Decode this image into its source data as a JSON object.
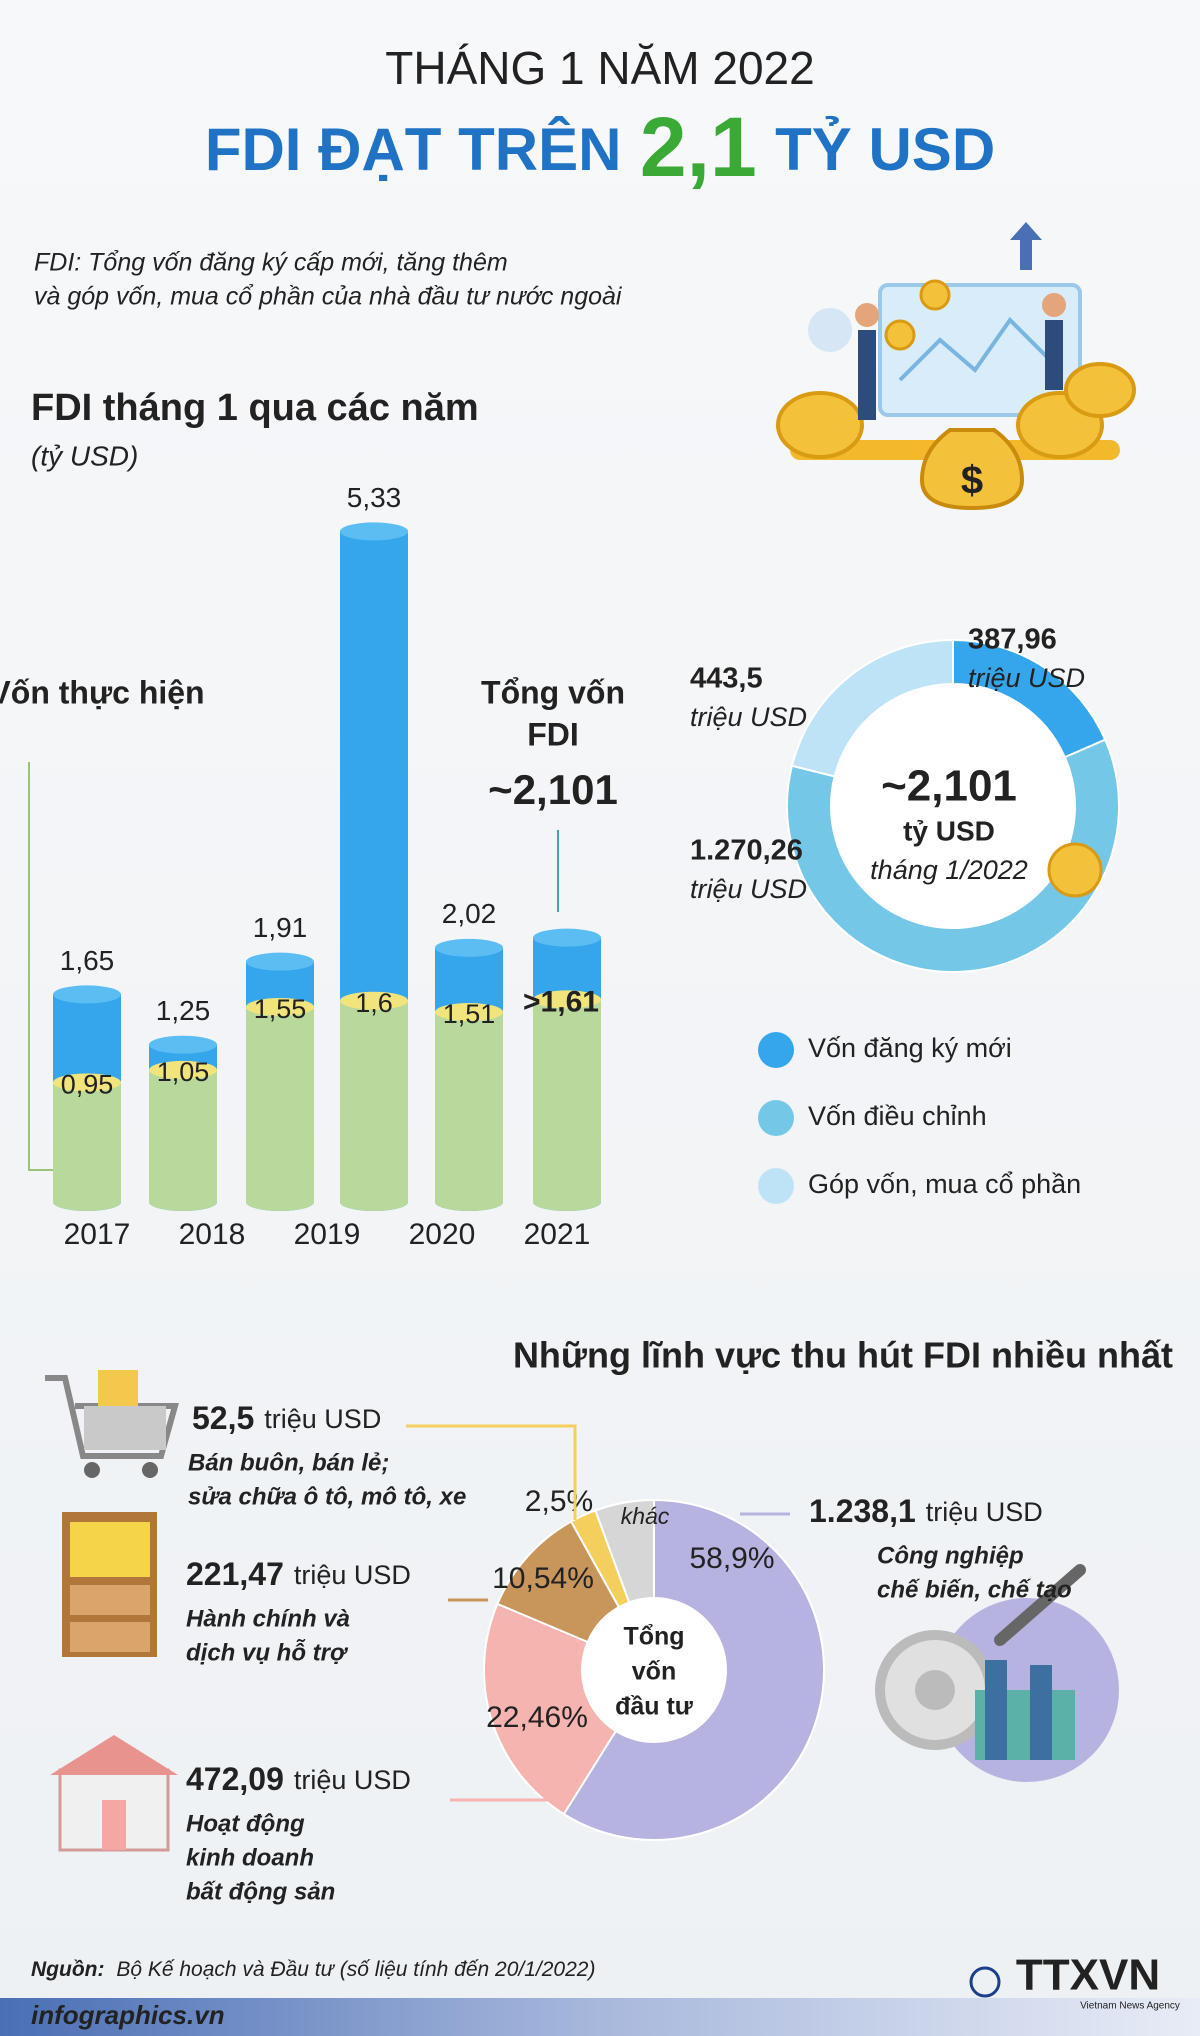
{
  "header": {
    "subtitle": "THÁNG 1 NĂM 2022",
    "title_parts": [
      "FDI ĐẠT TRÊN",
      "2,1",
      "TỶ USD"
    ],
    "note": [
      "FDI: Tổng vốn đăng ký cấp mới, tăng thêm",
      "và góp vốn, mua cổ phần của nhà đầu tư nước ngoài"
    ]
  },
  "chart_data": [
    {
      "type": "cylinder-bar",
      "title": "FDI tháng 1 qua các năm",
      "subtitle": "(tỷ USD)",
      "categories": [
        "2017",
        "2018",
        "2019",
        "2020",
        "2021",
        null
      ],
      "ylim": [
        0,
        5.5
      ],
      "series": [
        {
          "name": "Vốn thực hiện",
          "color": "#b9d89c",
          "top_color": "#f2e47c",
          "values": [
            0.95,
            1.05,
            1.55,
            1.6,
            1.51,
            1.61
          ],
          "value_labels": [
            "0,95",
            "1,05",
            "1,55",
            "1,6",
            "1,51",
            ">1,61"
          ]
        },
        {
          "color": "#35a6ec",
          "top_color": "#5cbdf3",
          "values": [
            1.65,
            1.25,
            1.91,
            5.33,
            2.02,
            2.101
          ],
          "value_labels": [
            "1,65",
            "1,25",
            "1,91",
            "5,33",
            "2,02",
            "~2,101"
          ]
        }
      ],
      "annotation": [
        "Tổng vốn",
        "FDI"
      ]
    },
    {
      "type": "donut",
      "center_label": [
        "~2,101",
        "tỷ USD",
        "tháng 1/2022"
      ],
      "categories": [
        "Vốn đăng ký mới",
        "Vốn điều chỉnh",
        "Góp vốn, mua cổ phần"
      ],
      "values": [
        387.96,
        1270.26,
        443.5
      ],
      "value_labels": [
        "387,96",
        "1.270,26",
        "443,5"
      ],
      "unit": "triệu USD",
      "colors": [
        "#35a6ec",
        "#74c7e6",
        "#bfe3f6"
      ]
    },
    {
      "type": "donut",
      "title": "Những lĩnh vực thu hút FDI nhiều nhất",
      "center_label": [
        "Tổng",
        "vốn",
        "đầu tư"
      ],
      "categories": [
        [
          "Công nghiệp",
          "chế biến, chế tạo"
        ],
        [
          "Hoạt động",
          "kinh doanh",
          "bất động sản"
        ],
        [
          "Hành chính và",
          "dịch vụ hỗ trợ"
        ],
        [
          "Bán buôn, bán lẻ;",
          "sửa chữa ô tô, mô tô, xe"
        ],
        [
          "khác"
        ]
      ],
      "values": [
        58.9,
        22.46,
        10.54,
        2.5,
        5.6
      ],
      "value_labels": [
        "58,9%",
        "22,46%",
        "10,54%",
        "2,5%",
        null
      ],
      "amounts": [
        1238.1,
        472.09,
        221.47,
        52.5,
        null
      ],
      "amount_labels": [
        "1.238,1",
        "472,09",
        "221,47",
        "52,5",
        null
      ],
      "unit": "triệu USD",
      "colors": [
        "#b6b3e1",
        "#f6b4b0",
        "#c8955b",
        "#f5cf5e",
        "#d6d6d6"
      ]
    }
  ],
  "footer": {
    "source_label": "Nguồn:",
    "source": "Bộ Kế hoạch và Đầu tư (số liệu tính đến 20/1/2022)",
    "site": "infographics.vn",
    "logo": "TTXVN",
    "agency": "Vietnam News Agency"
  }
}
